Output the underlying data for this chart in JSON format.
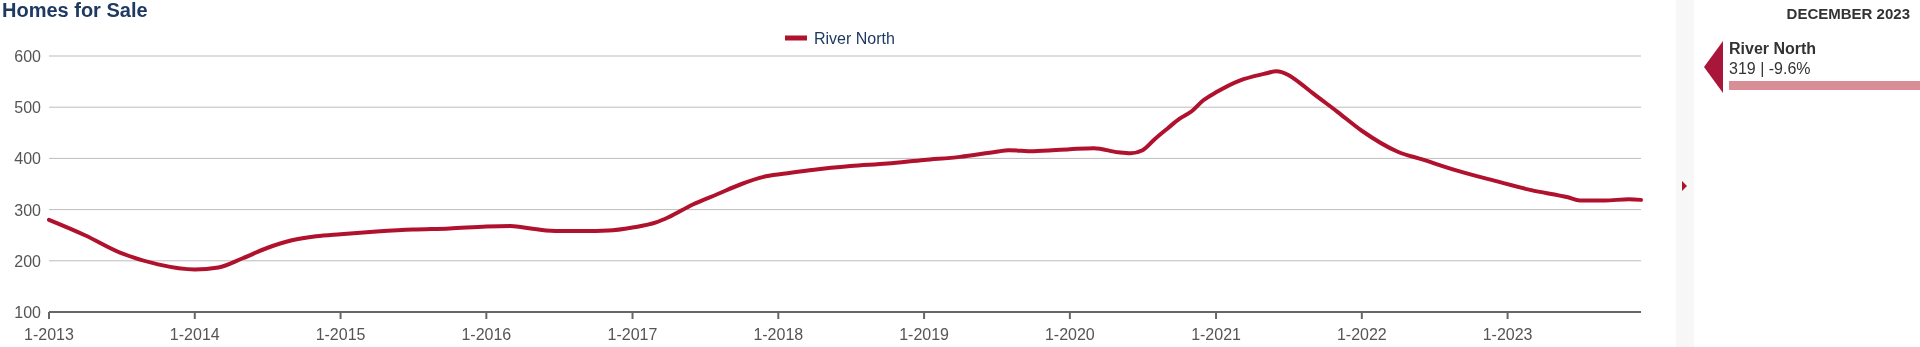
{
  "chart_data": {
    "type": "line",
    "title": "Homes for Sale",
    "x": [
      "2013-01",
      "2013-04",
      "2013-07",
      "2013-10",
      "2014-01",
      "2014-03",
      "2014-05",
      "2014-07",
      "2014-09",
      "2014-11",
      "2015-01",
      "2015-04",
      "2015-07",
      "2015-10",
      "2016-01",
      "2016-03",
      "2016-05",
      "2016-07",
      "2016-09",
      "2016-11",
      "2017-01",
      "2017-03",
      "2017-04",
      "2017-06",
      "2017-08",
      "2017-10",
      "2017-12",
      "2018-02",
      "2018-04",
      "2018-07",
      "2018-10",
      "2019-01",
      "2019-04",
      "2019-07",
      "2019-08",
      "2019-10",
      "2020-01",
      "2020-03",
      "2020-05",
      "2020-06",
      "2020-07",
      "2020-08",
      "2020-09",
      "2020-10",
      "2020-11",
      "2020-12",
      "2021-01",
      "2021-03",
      "2021-05",
      "2021-06",
      "2021-07",
      "2021-08",
      "2021-09",
      "2021-11",
      "2022-01",
      "2022-04",
      "2022-06",
      "2022-09",
      "2022-12",
      "2023-03",
      "2023-06",
      "2023-07",
      "2023-09",
      "2023-11",
      "2023-12"
    ],
    "series": [
      {
        "name": "River North",
        "color": "#b0122e",
        "values": [
          280,
          250,
          215,
          193,
          183,
          187,
          205,
          225,
          240,
          248,
          252,
          257,
          261,
          263,
          267,
          268,
          262,
          258,
          258,
          259,
          265,
          275,
          285,
          310,
          330,
          350,
          365,
          372,
          378,
          385,
          390,
          397,
          403,
          413,
          416,
          414,
          418,
          420,
          412,
          410,
          416,
          438,
          458,
          477,
          492,
          514,
          529,
          552,
          565,
          570,
          563,
          546,
          527,
          491,
          454,
          413,
          398,
          375,
          356,
          338,
          324,
          318,
          318,
          320,
          319
        ]
      }
    ],
    "xlim": [
      "2013-01",
      "2023-12"
    ],
    "xticks": [
      {
        "value": "2013-01",
        "label": "1-2013"
      },
      {
        "value": "2014-01",
        "label": "1-2014"
      },
      {
        "value": "2015-01",
        "label": "1-2015"
      },
      {
        "value": "2016-01",
        "label": "1-2016"
      },
      {
        "value": "2017-01",
        "label": "1-2017"
      },
      {
        "value": "2018-01",
        "label": "1-2018"
      },
      {
        "value": "2019-01",
        "label": "1-2019"
      },
      {
        "value": "2020-01",
        "label": "1-2020"
      },
      {
        "value": "2021-01",
        "label": "1-2021"
      },
      {
        "value": "2022-01",
        "label": "1-2022"
      },
      {
        "value": "2023-01",
        "label": "1-2023"
      }
    ],
    "ylim": [
      100,
      600
    ],
    "yticks": [
      100,
      200,
      300,
      400,
      500,
      600
    ],
    "grid": "y",
    "legend": "top",
    "line_style": "solid",
    "annotations": [
      "DECEMBER 2023",
      "River North",
      "319 | -9.6%"
    ]
  }
}
